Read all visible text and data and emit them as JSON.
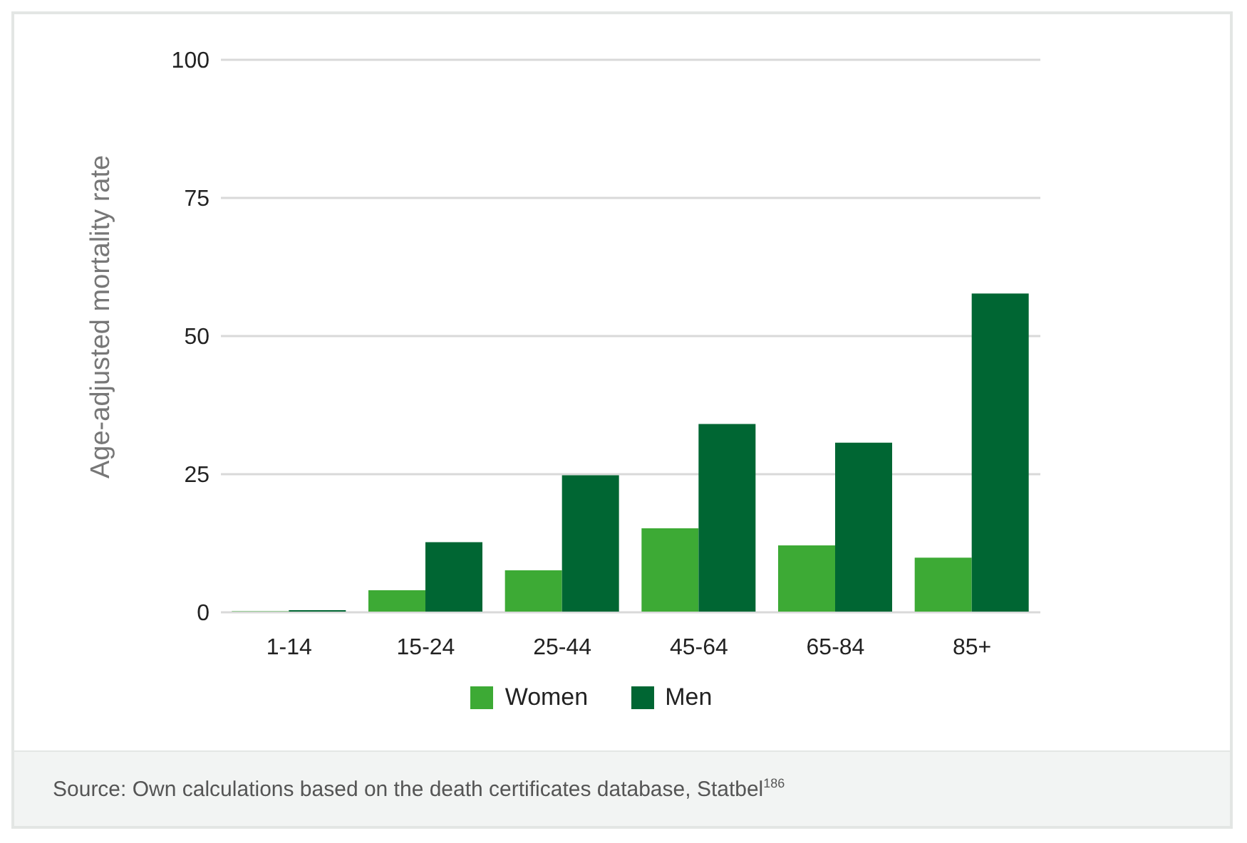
{
  "chart_data": {
    "type": "bar",
    "ylabel": "Age-adjusted mortality rate",
    "categories": [
      "1-14",
      "15-24",
      "25-44",
      "45-64",
      "65-84",
      "85+"
    ],
    "series": [
      {
        "name": "Women",
        "color": "#3daa35",
        "values": [
          0.2,
          4,
          7.6,
          15.2,
          12.1,
          9.9
        ]
      },
      {
        "name": "Men",
        "color": "#006633",
        "values": [
          0.4,
          12.7,
          24.8,
          34.1,
          30.7,
          57.7
        ]
      }
    ],
    "ylim": [
      0,
      100
    ],
    "yticks": [
      0,
      25,
      50,
      75,
      100
    ],
    "grid": "y",
    "legend": "bottom",
    "annotations": [
      "Source: Own calculations based on the death certificates database, Statbel$^{186}$"
    ]
  }
}
